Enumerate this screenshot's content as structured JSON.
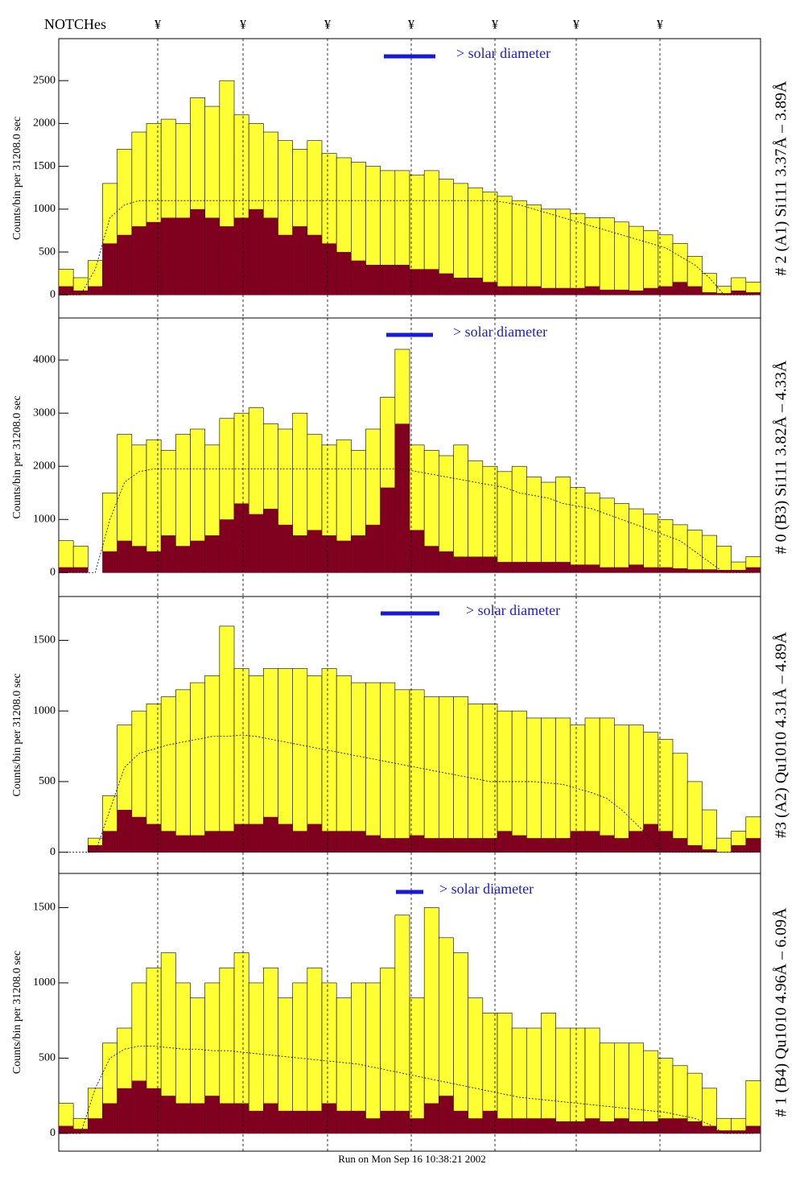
{
  "header": {
    "notches_label": "NOTCHes",
    "notches": [
      "¥",
      "¥",
      "¥",
      "¥",
      "¥",
      "¥",
      "¥"
    ]
  },
  "footer": "Run on Mon Sep 16 10:38:21 2002",
  "chart_data": [
    {
      "type": "histogram",
      "y_label": "Counts/bin per  31208.0 sec",
      "panel_label": "# 2 (A1) Si111  3.37Å – 3.89Å",
      "annotation": "> solar diameter",
      "ylim": [
        -270,
        2990
      ],
      "yticks": [
        0,
        500,
        1000,
        1500,
        2000,
        2500
      ],
      "series": [
        {
          "color": "#ffff33",
          "values": [
            300,
            200,
            400,
            1300,
            1700,
            1900,
            2000,
            2050,
            2000,
            2300,
            2200,
            2500,
            2100,
            2000,
            1900,
            1800,
            1700,
            1800,
            1650,
            1600,
            1550,
            1500,
            1450,
            1450,
            1400,
            1450,
            1350,
            1300,
            1250,
            1200,
            1150,
            1100,
            1050,
            1000,
            1000,
            950,
            900,
            900,
            850,
            800,
            750,
            700,
            600,
            450,
            250,
            100,
            200,
            150
          ]
        },
        {
          "color": "#800020",
          "values": [
            100,
            50,
            100,
            600,
            700,
            800,
            850,
            900,
            900,
            1000,
            900,
            800,
            900,
            1000,
            900,
            700,
            800,
            700,
            600,
            500,
            400,
            350,
            350,
            350,
            300,
            300,
            250,
            200,
            200,
            150,
            100,
            100,
            100,
            80,
            80,
            80,
            100,
            60,
            60,
            50,
            80,
            100,
            150,
            100,
            30,
            20,
            50,
            30
          ]
        }
      ],
      "fit": [
        0,
        0,
        300,
        900,
        1050,
        1100,
        1100,
        1100,
        1100,
        1100,
        1100,
        1100,
        1100,
        1100,
        1100,
        1100,
        1100,
        1100,
        1100,
        1100,
        1100,
        1100,
        1100,
        1100,
        1100,
        1100,
        1100,
        1100,
        1100,
        1100,
        1080,
        1050,
        1000,
        950,
        900,
        850,
        800,
        750,
        700,
        650,
        600,
        550,
        450,
        350,
        200,
        0,
        0,
        0
      ]
    },
    {
      "type": "histogram",
      "y_label": "Counts/bin per  31208.0 sec",
      "panel_label": "# 0 (B3) Si111  3.82Å – 4.33Å",
      "annotation": "> solar diameter",
      "ylim": [
        -450,
        4790
      ],
      "yticks": [
        0,
        1000,
        2000,
        3000,
        4000
      ],
      "series": [
        {
          "color": "#ffff33",
          "values": [
            600,
            500,
            0,
            1500,
            2600,
            2400,
            2500,
            2300,
            2600,
            2700,
            2400,
            2900,
            3000,
            3100,
            2800,
            2700,
            3000,
            2600,
            2400,
            2500,
            2300,
            2700,
            3300,
            4200,
            2400,
            2300,
            2200,
            2400,
            2100,
            2000,
            1900,
            2000,
            1800,
            1700,
            1800,
            1600,
            1500,
            1400,
            1300,
            1200,
            1100,
            1000,
            900,
            800,
            700,
            500,
            200,
            300
          ]
        },
        {
          "color": "#800020",
          "values": [
            100,
            100,
            0,
            400,
            600,
            500,
            400,
            700,
            500,
            600,
            700,
            1000,
            1300,
            1100,
            1200,
            900,
            700,
            800,
            700,
            600,
            700,
            900,
            1600,
            2800,
            800,
            500,
            400,
            300,
            300,
            300,
            200,
            200,
            200,
            200,
            200,
            150,
            150,
            100,
            100,
            150,
            100,
            100,
            80,
            60,
            60,
            50,
            50,
            100
          ]
        }
      ],
      "fit": [
        0,
        0,
        0,
        1000,
        1700,
        1900,
        1950,
        1950,
        1950,
        1950,
        1950,
        1950,
        1950,
        1950,
        1950,
        1950,
        1950,
        1950,
        1950,
        1950,
        1950,
        1950,
        1950,
        1950,
        1900,
        1850,
        1800,
        1750,
        1700,
        1650,
        1600,
        1500,
        1450,
        1400,
        1300,
        1250,
        1200,
        1100,
        1000,
        900,
        800,
        700,
        600,
        400,
        200,
        0,
        0,
        0
      ]
    },
    {
      "type": "histogram",
      "y_label": "Counts/bin per  31208.0 sec",
      "panel_label": "#3 (A2) Qu1010  4.31Å – 4.89Å",
      "annotation": "> solar diameter",
      "ylim": [
        -150,
        1810
      ],
      "yticks": [
        0,
        500,
        1000,
        1500
      ],
      "series": [
        {
          "color": "#ffff33",
          "values": [
            0,
            0,
            100,
            400,
            900,
            1000,
            1050,
            1100,
            1150,
            1200,
            1250,
            1600,
            1300,
            1250,
            1300,
            1300,
            1300,
            1250,
            1300,
            1250,
            1200,
            1200,
            1200,
            1150,
            1150,
            1100,
            1100,
            1100,
            1050,
            1050,
            1000,
            1000,
            950,
            950,
            950,
            900,
            950,
            950,
            900,
            900,
            850,
            800,
            700,
            500,
            300,
            100,
            150,
            250
          ]
        },
        {
          "color": "#800020",
          "values": [
            0,
            0,
            50,
            150,
            300,
            250,
            200,
            150,
            120,
            120,
            150,
            150,
            200,
            200,
            250,
            200,
            150,
            200,
            150,
            150,
            150,
            120,
            100,
            100,
            120,
            100,
            100,
            100,
            100,
            100,
            150,
            120,
            100,
            100,
            100,
            150,
            150,
            120,
            100,
            150,
            200,
            150,
            100,
            50,
            20,
            0,
            50,
            100
          ]
        }
      ],
      "fit": [
        0,
        0,
        0,
        300,
        600,
        700,
        730,
        760,
        780,
        800,
        820,
        820,
        830,
        820,
        800,
        780,
        760,
        740,
        720,
        700,
        680,
        660,
        640,
        620,
        600,
        580,
        560,
        540,
        520,
        500,
        500,
        500,
        500,
        490,
        480,
        450,
        420,
        380,
        300,
        200,
        100,
        0,
        0,
        0,
        0,
        0,
        0,
        0
      ]
    },
    {
      "type": "histogram",
      "y_label": "Counts/bin per  31208.0 sec",
      "panel_label": "# 1 (B4) Qu1010 4.96Å – 6.09Å",
      "annotation": "> solar diameter",
      "ylim": [
        -118,
        1727
      ],
      "yticks": [
        0,
        500,
        1000,
        1500
      ],
      "series": [
        {
          "color": "#ffff33",
          "values": [
            200,
            100,
            300,
            600,
            700,
            1000,
            1100,
            1200,
            1000,
            900,
            1000,
            1100,
            1200,
            1000,
            1100,
            900,
            1000,
            1100,
            1000,
            900,
            1000,
            1000,
            1100,
            1450,
            900,
            1500,
            1300,
            1200,
            900,
            800,
            800,
            700,
            700,
            800,
            700,
            700,
            700,
            600,
            600,
            600,
            550,
            500,
            450,
            400,
            300,
            100,
            100,
            350
          ]
        },
        {
          "color": "#800020",
          "values": [
            50,
            30,
            100,
            200,
            300,
            350,
            300,
            250,
            200,
            200,
            250,
            200,
            200,
            150,
            200,
            150,
            150,
            150,
            200,
            150,
            150,
            100,
            150,
            150,
            100,
            200,
            250,
            150,
            100,
            150,
            100,
            100,
            100,
            100,
            80,
            80,
            100,
            80,
            100,
            80,
            80,
            100,
            100,
            80,
            50,
            20,
            20,
            50
          ]
        }
      ],
      "fit": [
        0,
        0,
        300,
        500,
        560,
        580,
        580,
        570,
        560,
        560,
        550,
        550,
        540,
        530,
        520,
        510,
        500,
        490,
        480,
        470,
        460,
        440,
        420,
        400,
        380,
        360,
        340,
        320,
        300,
        280,
        260,
        240,
        230,
        220,
        210,
        200,
        190,
        180,
        170,
        160,
        150,
        140,
        120,
        100,
        60,
        0,
        0,
        0
      ]
    }
  ]
}
